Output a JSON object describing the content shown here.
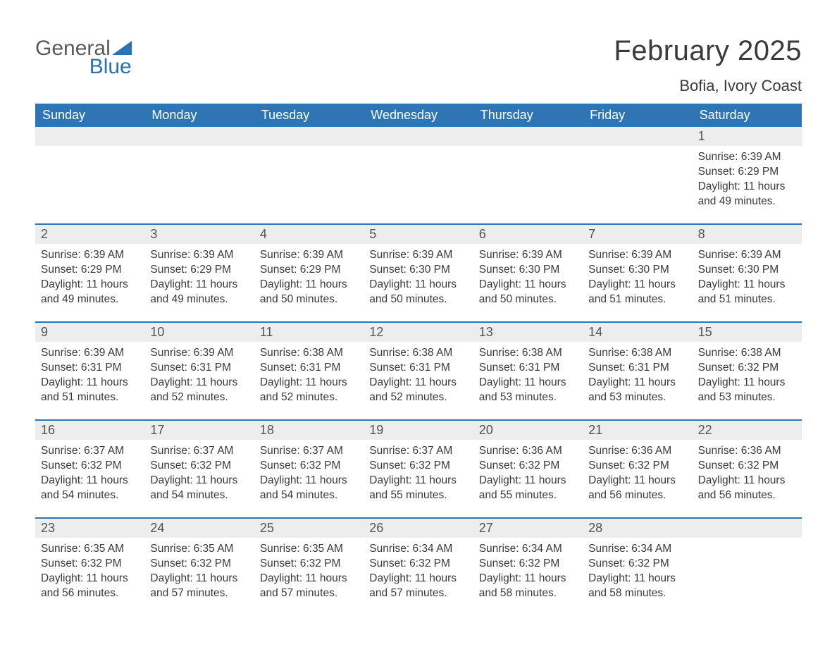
{
  "brand": {
    "word1": "General",
    "word2": "Blue",
    "word1_color": "#5a5a5a",
    "word2_color": "#2a72b5",
    "triangle_color": "#2a72b5"
  },
  "header": {
    "month_title": "February 2025",
    "location": "Bofia, Ivory Coast"
  },
  "styling": {
    "page_bg": "#ffffff",
    "header_band_bg": "#2e75b6",
    "header_band_text": "#ffffff",
    "daynum_band_bg": "#ededed",
    "week_divider_color": "#2e75b6",
    "body_text_color": "#3a3a3a",
    "daynum_text_color": "#535353",
    "font_family": "Arial",
    "month_title_fontsize_pt": 30,
    "location_fontsize_pt": 16,
    "dow_fontsize_pt": 14,
    "daynum_fontsize_pt": 14,
    "body_fontsize_pt": 12
  },
  "days_of_week": [
    "Sunday",
    "Monday",
    "Tuesday",
    "Wednesday",
    "Thursday",
    "Friday",
    "Saturday"
  ],
  "weeks": [
    [
      null,
      null,
      null,
      null,
      null,
      null,
      {
        "n": "1",
        "sunrise": "Sunrise: 6:39 AM",
        "sunset": "Sunset: 6:29 PM",
        "daylight": "Daylight: 11 hours and 49 minutes."
      }
    ],
    [
      {
        "n": "2",
        "sunrise": "Sunrise: 6:39 AM",
        "sunset": "Sunset: 6:29 PM",
        "daylight": "Daylight: 11 hours and 49 minutes."
      },
      {
        "n": "3",
        "sunrise": "Sunrise: 6:39 AM",
        "sunset": "Sunset: 6:29 PM",
        "daylight": "Daylight: 11 hours and 49 minutes."
      },
      {
        "n": "4",
        "sunrise": "Sunrise: 6:39 AM",
        "sunset": "Sunset: 6:29 PM",
        "daylight": "Daylight: 11 hours and 50 minutes."
      },
      {
        "n": "5",
        "sunrise": "Sunrise: 6:39 AM",
        "sunset": "Sunset: 6:30 PM",
        "daylight": "Daylight: 11 hours and 50 minutes."
      },
      {
        "n": "6",
        "sunrise": "Sunrise: 6:39 AM",
        "sunset": "Sunset: 6:30 PM",
        "daylight": "Daylight: 11 hours and 50 minutes."
      },
      {
        "n": "7",
        "sunrise": "Sunrise: 6:39 AM",
        "sunset": "Sunset: 6:30 PM",
        "daylight": "Daylight: 11 hours and 51 minutes."
      },
      {
        "n": "8",
        "sunrise": "Sunrise: 6:39 AM",
        "sunset": "Sunset: 6:30 PM",
        "daylight": "Daylight: 11 hours and 51 minutes."
      }
    ],
    [
      {
        "n": "9",
        "sunrise": "Sunrise: 6:39 AM",
        "sunset": "Sunset: 6:31 PM",
        "daylight": "Daylight: 11 hours and 51 minutes."
      },
      {
        "n": "10",
        "sunrise": "Sunrise: 6:39 AM",
        "sunset": "Sunset: 6:31 PM",
        "daylight": "Daylight: 11 hours and 52 minutes."
      },
      {
        "n": "11",
        "sunrise": "Sunrise: 6:38 AM",
        "sunset": "Sunset: 6:31 PM",
        "daylight": "Daylight: 11 hours and 52 minutes."
      },
      {
        "n": "12",
        "sunrise": "Sunrise: 6:38 AM",
        "sunset": "Sunset: 6:31 PM",
        "daylight": "Daylight: 11 hours and 52 minutes."
      },
      {
        "n": "13",
        "sunrise": "Sunrise: 6:38 AM",
        "sunset": "Sunset: 6:31 PM",
        "daylight": "Daylight: 11 hours and 53 minutes."
      },
      {
        "n": "14",
        "sunrise": "Sunrise: 6:38 AM",
        "sunset": "Sunset: 6:31 PM",
        "daylight": "Daylight: 11 hours and 53 minutes."
      },
      {
        "n": "15",
        "sunrise": "Sunrise: 6:38 AM",
        "sunset": "Sunset: 6:32 PM",
        "daylight": "Daylight: 11 hours and 53 minutes."
      }
    ],
    [
      {
        "n": "16",
        "sunrise": "Sunrise: 6:37 AM",
        "sunset": "Sunset: 6:32 PM",
        "daylight": "Daylight: 11 hours and 54 minutes."
      },
      {
        "n": "17",
        "sunrise": "Sunrise: 6:37 AM",
        "sunset": "Sunset: 6:32 PM",
        "daylight": "Daylight: 11 hours and 54 minutes."
      },
      {
        "n": "18",
        "sunrise": "Sunrise: 6:37 AM",
        "sunset": "Sunset: 6:32 PM",
        "daylight": "Daylight: 11 hours and 54 minutes."
      },
      {
        "n": "19",
        "sunrise": "Sunrise: 6:37 AM",
        "sunset": "Sunset: 6:32 PM",
        "daylight": "Daylight: 11 hours and 55 minutes."
      },
      {
        "n": "20",
        "sunrise": "Sunrise: 6:36 AM",
        "sunset": "Sunset: 6:32 PM",
        "daylight": "Daylight: 11 hours and 55 minutes."
      },
      {
        "n": "21",
        "sunrise": "Sunrise: 6:36 AM",
        "sunset": "Sunset: 6:32 PM",
        "daylight": "Daylight: 11 hours and 56 minutes."
      },
      {
        "n": "22",
        "sunrise": "Sunrise: 6:36 AM",
        "sunset": "Sunset: 6:32 PM",
        "daylight": "Daylight: 11 hours and 56 minutes."
      }
    ],
    [
      {
        "n": "23",
        "sunrise": "Sunrise: 6:35 AM",
        "sunset": "Sunset: 6:32 PM",
        "daylight": "Daylight: 11 hours and 56 minutes."
      },
      {
        "n": "24",
        "sunrise": "Sunrise: 6:35 AM",
        "sunset": "Sunset: 6:32 PM",
        "daylight": "Daylight: 11 hours and 57 minutes."
      },
      {
        "n": "25",
        "sunrise": "Sunrise: 6:35 AM",
        "sunset": "Sunset: 6:32 PM",
        "daylight": "Daylight: 11 hours and 57 minutes."
      },
      {
        "n": "26",
        "sunrise": "Sunrise: 6:34 AM",
        "sunset": "Sunset: 6:32 PM",
        "daylight": "Daylight: 11 hours and 57 minutes."
      },
      {
        "n": "27",
        "sunrise": "Sunrise: 6:34 AM",
        "sunset": "Sunset: 6:32 PM",
        "daylight": "Daylight: 11 hours and 58 minutes."
      },
      {
        "n": "28",
        "sunrise": "Sunrise: 6:34 AM",
        "sunset": "Sunset: 6:32 PM",
        "daylight": "Daylight: 11 hours and 58 minutes."
      },
      null
    ]
  ]
}
